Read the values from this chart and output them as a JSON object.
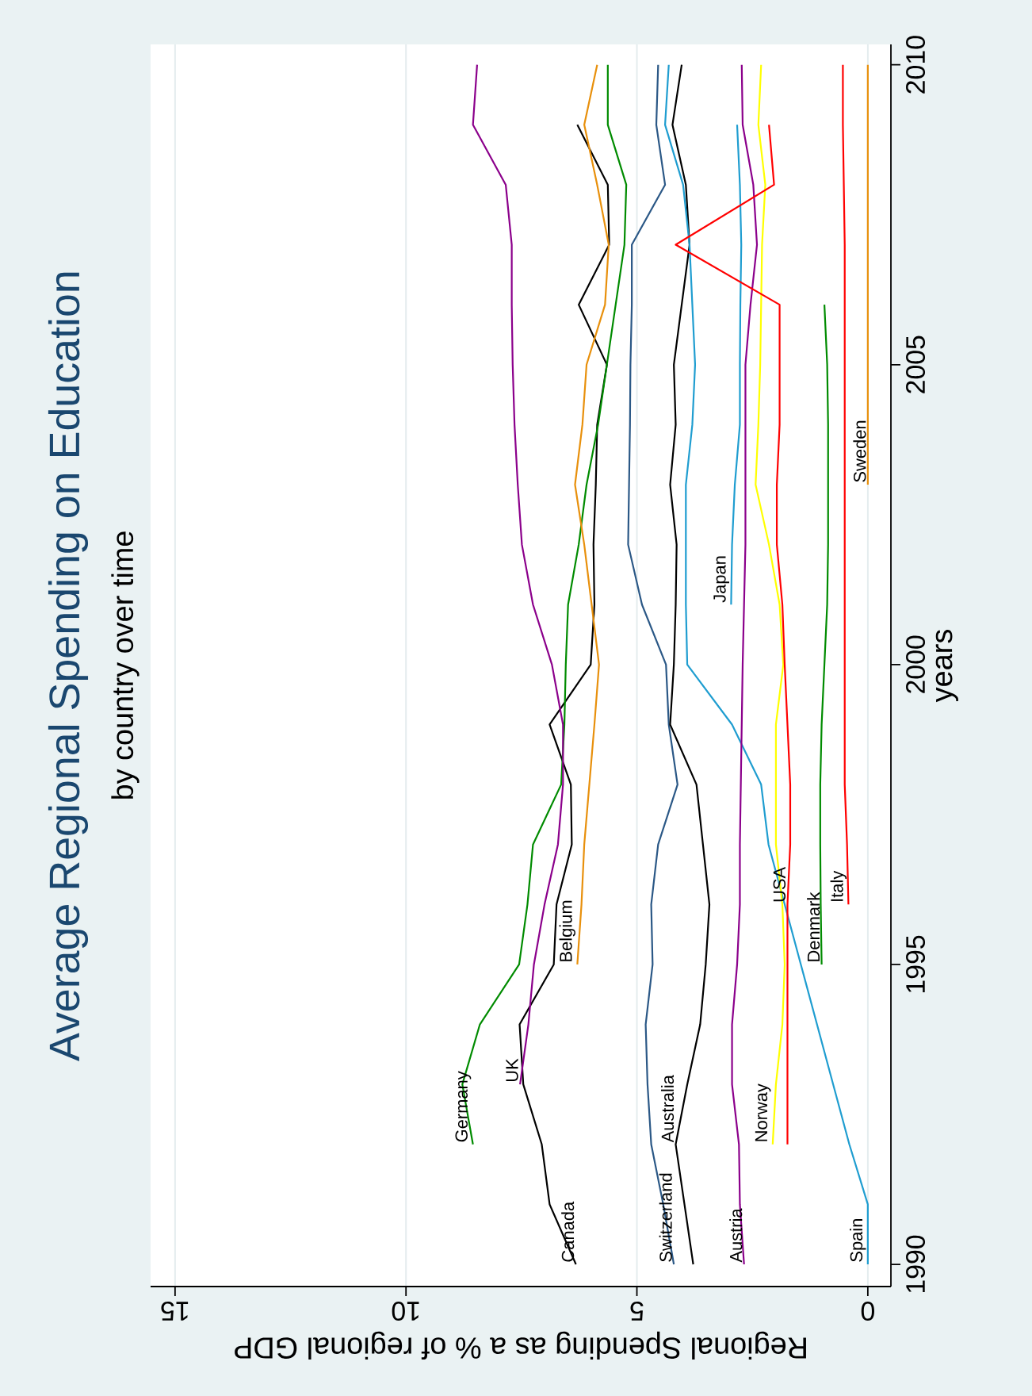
{
  "chart_data": {
    "type": "line",
    "title": "Average Regional Spending on Education",
    "subtitle": "by country over time",
    "xlabel": "Regional Spending as a % of regional GDP",
    "ylabel": "years",
    "xlim": [
      15.53,
      -0.5
    ],
    "ylim": [
      1989.63,
      2010.34
    ],
    "xticks": [
      0,
      5,
      10,
      15
    ],
    "yticks": [
      1990,
      1995,
      2000,
      2005,
      2010
    ],
    "grid": "x",
    "series": [
      {
        "name": "Canada",
        "color": "#000000",
        "values": [
          1990,
          1991,
          1992,
          1993,
          1994,
          1995,
          1996,
          1997,
          1998,
          1999,
          2000,
          2001,
          2002,
          2003,
          2004,
          2005,
          2006,
          2007,
          2008,
          2009
        ],
        "x": [
          6.32,
          6.89,
          7.06,
          7.46,
          7.54,
          6.8,
          6.74,
          6.41,
          6.43,
          6.89,
          6.0,
          5.92,
          5.94,
          5.89,
          5.86,
          5.65,
          6.26,
          5.6,
          5.63,
          6.29
        ]
      },
      {
        "name": "Germany",
        "color": "#008b00",
        "values": [
          1992,
          1993,
          1994,
          1995,
          1996,
          1997,
          1998,
          1999,
          2000,
          2001,
          2002,
          2003,
          2004,
          2005,
          2006,
          2007,
          2008,
          2009,
          2010
        ],
        "x": [
          8.55,
          8.78,
          8.4,
          7.55,
          7.37,
          7.25,
          6.64,
          6.57,
          6.54,
          6.49,
          6.26,
          6.09,
          5.84,
          5.65,
          5.46,
          5.27,
          5.23,
          5.63,
          5.63
        ]
      },
      {
        "name": "UK",
        "color": "#8b008b",
        "values": [
          1993,
          1994,
          1995,
          1996,
          1997,
          1998,
          1999,
          2000,
          2001,
          2002,
          2003,
          2004,
          2005,
          2006,
          2007,
          2008,
          2009,
          2010
        ],
        "x": [
          7.53,
          7.35,
          7.23,
          7.0,
          6.71,
          6.6,
          6.6,
          6.84,
          7.25,
          7.49,
          7.58,
          7.65,
          7.69,
          7.71,
          7.71,
          7.84,
          8.55,
          8.46
        ]
      },
      {
        "name": "Belgium",
        "color": "#e8900c",
        "values": [
          1995,
          1996,
          1997,
          1998,
          1999,
          2000,
          2001,
          2002,
          2003,
          2004,
          2005,
          2006,
          2007,
          2008,
          2009,
          2010
        ],
        "x": [
          6.29,
          6.2,
          6.14,
          6.03,
          5.92,
          5.82,
          5.98,
          6.14,
          6.34,
          6.18,
          6.09,
          5.69,
          5.61,
          5.86,
          6.14,
          5.86
        ]
      },
      {
        "name": "Switzerland",
        "color": "#2b5886",
        "values": [
          1990,
          1991,
          1992,
          1993,
          1994,
          1995,
          1996,
          1997,
          1998,
          1999,
          2000,
          2001,
          2002,
          2003,
          2004,
          2005,
          2006,
          2007,
          2008,
          2009,
          2010
        ],
        "x": [
          4.2,
          4.43,
          4.69,
          4.77,
          4.81,
          4.66,
          4.69,
          4.54,
          4.12,
          4.31,
          4.37,
          4.89,
          5.19,
          5.17,
          5.15,
          5.14,
          5.11,
          5.11,
          4.39,
          4.58,
          4.54
        ]
      },
      {
        "name": "Australia",
        "color": "#000000",
        "values": [
          1990,
          1991,
          1992,
          1993,
          1994,
          1995,
          1996,
          1997,
          1998,
          1999,
          2000,
          2001,
          2002,
          2003,
          2004,
          2005,
          2006,
          2007,
          2008,
          2009,
          2010
        ],
        "x": [
          3.78,
          3.97,
          4.16,
          3.91,
          3.63,
          3.51,
          3.43,
          3.57,
          3.71,
          4.28,
          4.2,
          4.16,
          4.14,
          4.28,
          4.16,
          4.2,
          4.03,
          3.86,
          3.94,
          4.23,
          4.03
        ]
      },
      {
        "name": "Spain",
        "color": "#1f9dd0",
        "values": [
          1990,
          1991,
          1992,
          1993,
          1994,
          1995,
          1996,
          1997,
          1998,
          1999,
          2000,
          2001,
          2003,
          2004,
          2005,
          2006,
          2007,
          2008,
          2009,
          2010
        ],
        "x": [
          0,
          0,
          0.4,
          0.75,
          1.1,
          1.45,
          1.8,
          2.15,
          2.31,
          2.94,
          3.91,
          3.94,
          3.94,
          3.8,
          3.74,
          3.8,
          3.86,
          4.0,
          4.39,
          4.31
        ]
      },
      {
        "name": "Japan",
        "color": "#1f9dd0",
        "values": [
          2001,
          2002,
          2003,
          2004,
          2005,
          2006,
          2007,
          2008,
          2009
        ],
        "x": [
          2.96,
          2.94,
          2.88,
          2.77,
          2.77,
          2.76,
          2.74,
          2.77,
          2.83
        ]
      },
      {
        "name": "Austria",
        "color": "#8b008b",
        "values": [
          1990,
          1991,
          1992,
          1993,
          1994,
          1995,
          1996,
          1997,
          1998,
          1999,
          2000,
          2001,
          2002,
          2005,
          2006,
          2007,
          2008,
          2009,
          2010
        ],
        "x": [
          2.68,
          2.77,
          2.79,
          2.94,
          2.94,
          2.83,
          2.77,
          2.77,
          2.75,
          2.73,
          2.71,
          2.68,
          2.65,
          2.65,
          2.54,
          2.4,
          2.48,
          2.71,
          2.73
        ]
      },
      {
        "name": "Norway",
        "color": "#ffff00",
        "values": [
          1992,
          1993,
          1994,
          1995,
          1996,
          1997,
          1999,
          2000,
          2001,
          2002,
          2003,
          2004,
          2005,
          2006,
          2007,
          2008,
          2009,
          2010
        ],
        "x": [
          2.06,
          1.99,
          1.85,
          1.8,
          1.85,
          1.99,
          1.99,
          1.83,
          1.91,
          2.14,
          2.43,
          2.37,
          2.33,
          2.31,
          2.29,
          2.22,
          2.37,
          2.31
        ]
      },
      {
        "name": "USA",
        "color": "#ff0000",
        "values": [
          1992,
          1996,
          1997,
          1998,
          1999,
          2000,
          2001,
          2002,
          2003,
          2004,
          2006,
          2007,
          2008,
          2009
        ],
        "x": [
          1.74,
          1.74,
          1.68,
          1.68,
          1.74,
          1.8,
          1.85,
          1.97,
          1.97,
          1.91,
          1.91,
          4.16,
          2.03,
          2.14
        ]
      },
      {
        "name": "Denmark",
        "color": "#008b00",
        "values": [
          1995,
          1996,
          1997,
          1998,
          1999,
          2000,
          2001,
          2002,
          2004,
          2005,
          2006
        ],
        "x": [
          1.0,
          1.02,
          1.03,
          1.03,
          1.0,
          0.94,
          0.88,
          0.86,
          0.86,
          0.88,
          0.94
        ]
      },
      {
        "name": "Italy",
        "color": "#ff0000",
        "values": [
          1996,
          1997,
          1998,
          2007,
          2008,
          2009,
          2010
        ],
        "x": [
          0.42,
          0.45,
          0.5,
          0.5,
          0.52,
          0.54,
          0.54
        ]
      },
      {
        "name": "Sweden",
        "color": "#e8900c",
        "values": [
          2003,
          2010
        ],
        "x": [
          0,
          0
        ]
      }
    ]
  }
}
